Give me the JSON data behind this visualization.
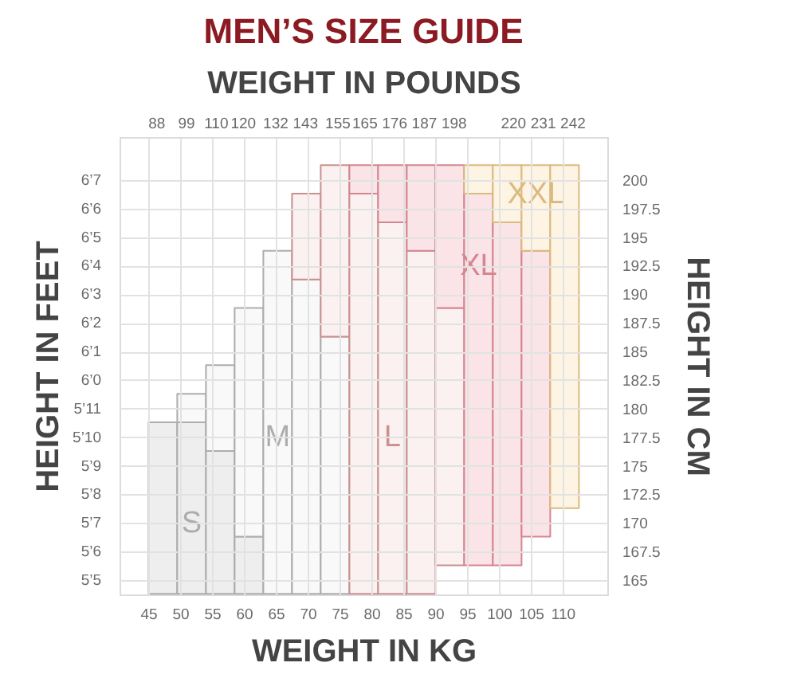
{
  "chart_data": {
    "type": "bar",
    "title": "MEN’S SIZE GUIDE",
    "xlabel": "WEIGHT IN KG",
    "x2label": "WEIGHT IN POUNDS",
    "ylabel": "HEIGHT IN CM",
    "y2label": "HEIGHT IN FEET",
    "xlim": [
      40.5,
      117
    ],
    "xticks": [
      45,
      50,
      55,
      60,
      65,
      70,
      75,
      80,
      85,
      90,
      95,
      100,
      105,
      110
    ],
    "x2lim": [
      74.5,
      255
    ],
    "x2ticks": [
      88,
      99,
      110,
      120,
      132,
      143,
      155,
      165,
      176,
      187,
      198,
      220,
      231,
      242
    ],
    "ylim": [
      163.75,
      203.75
    ],
    "yticks": [
      165,
      167.5,
      170,
      172.5,
      175,
      177.5,
      180,
      182.5,
      185,
      187.5,
      190,
      192.5,
      195,
      197.5,
      200
    ],
    "y2_categories": [
      null,
      "6’7",
      "6’6",
      "6’5",
      "6’4",
      "6’3",
      "6’2",
      "6’1",
      "6’0",
      "5’11",
      "5’10",
      "5’9",
      "5’8",
      "5’7",
      "5’6",
      "5’5"
    ],
    "grid": true,
    "series": [
      {
        "name": "S",
        "color": "#eeeeee",
        "x": [
          47.3,
          51.8,
          56.3,
          60.8
        ],
        "base": [
          163.8,
          163.8,
          163.8,
          163.8
        ],
        "values": [
          15,
          15,
          12.5,
          5
        ]
      },
      {
        "name": "M",
        "color": "#f9f9f9",
        "x": [
          51.8,
          56.3,
          60.8,
          65.3,
          69.8,
          74.3
        ],
        "base": [
          178.8,
          176.3,
          168.8,
          163.8,
          163.8,
          163.8
        ],
        "values": [
          2.5,
          7.5,
          20,
          30,
          27.5,
          22.5
        ]
      },
      {
        "name": "L",
        "color": "#fbf1f1",
        "x": [
          69.8,
          74.3,
          78.8,
          83.3,
          87.8,
          92.3
        ],
        "base": [
          191.3,
          186.3,
          163.8,
          163.8,
          163.8,
          166.3
        ],
        "values": [
          7.5,
          15,
          35,
          32.5,
          30,
          22.5
        ]
      },
      {
        "name": "XL",
        "color": "#fbe4e7",
        "x": [
          78.8,
          83.3,
          87.8,
          92.3,
          96.8,
          101.3,
          105.8
        ],
        "base": [
          198.8,
          196.3,
          193.8,
          188.8,
          166.3,
          166.3,
          168.8
        ],
        "values": [
          2.5,
          5,
          7.5,
          12.5,
          32.5,
          30,
          25
        ]
      },
      {
        "name": "XXL",
        "color": "#fdf4e4",
        "x": [
          96.8,
          101.3,
          105.8,
          110.3
        ],
        "base": [
          198.8,
          196.3,
          193.8,
          171.3
        ],
        "values": [
          2.5,
          5,
          7.5,
          30
        ]
      }
    ]
  }
}
